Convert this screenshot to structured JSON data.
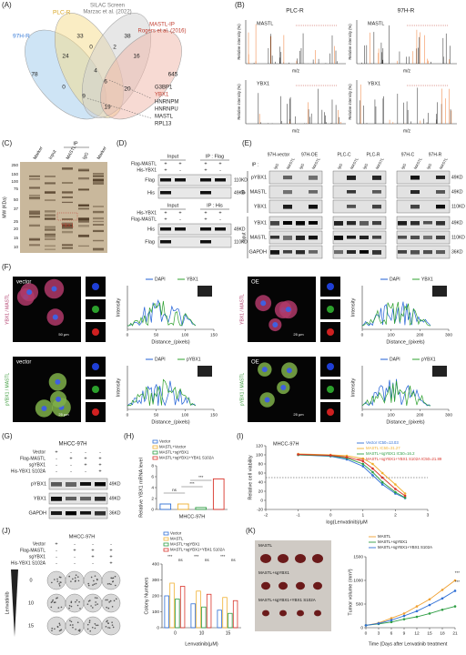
{
  "A": {
    "label": "(A)",
    "sets": [
      "97H-R",
      "PLC-R",
      "SILAC Screen",
      "Marzac et al. (2022)",
      "MASTL-IP",
      "Rogers et al. (2016)"
    ],
    "counts": [
      78,
      33,
      38,
      645,
      24,
      0,
      2,
      16,
      4,
      6,
      20,
      0,
      9,
      19
    ],
    "genes": [
      "G3BP1",
      "YBX1",
      "HNRNPM",
      "HNRNPU",
      "MASTL",
      "RPL13"
    ]
  },
  "B": {
    "label": "(B)",
    "titles": [
      "PLC-R",
      "97H-R"
    ],
    "proteins": [
      "MASTL",
      "YBX1"
    ],
    "ylabel": "Relative intensity (%)",
    "xlabel": "m/z"
  },
  "C": {
    "label": "(C)",
    "lanes": [
      "Marker",
      "Input",
      "MASTL",
      "IgG",
      "Marker"
    ],
    "ip": "IP",
    "ylabel": "MW (KDa)",
    "mw": [
      250,
      150,
      100,
      75,
      50,
      37,
      25,
      20,
      15,
      10
    ],
    "band": "YBX1"
  },
  "D": {
    "label": "(D)",
    "top": {
      "headers": [
        "Input",
        "IP : Flag"
      ],
      "rows": [
        "Flag-MASTL",
        "His-YBX1"
      ],
      "signs": [
        [
          "+",
          "+",
          "+",
          "+"
        ],
        [
          "+",
          "-",
          "+",
          "-"
        ]
      ],
      "blots": [
        "Flag",
        "His"
      ],
      "sizes": [
        "110KD",
        "49KD"
      ]
    },
    "bottom": {
      "headers": [
        "Input",
        "IP : His"
      ],
      "rows": [
        "His-YBX1",
        "Flag-MASTL"
      ],
      "signs": [
        [
          "+",
          "+",
          "+",
          "+"
        ],
        [
          "+",
          "-",
          "+",
          "-"
        ]
      ],
      "blots": [
        "His",
        "Flag"
      ],
      "sizes": [
        "49KD",
        "110KD"
      ]
    }
  },
  "E": {
    "label": "(E)",
    "groups": [
      "97H-vector",
      "97H-OE",
      "PLC-C",
      "PLC-R",
      "97H-C",
      "97H-R"
    ],
    "lanes": [
      "IgG",
      "MASTL"
    ],
    "ip_prefix": "IP :",
    "sections": [
      "IP",
      "Input"
    ],
    "rows": [
      "pYBX1",
      "MASTL",
      "YBX1",
      "YBX1",
      "MASTL",
      "GAPDH"
    ],
    "sizes": [
      "49KD",
      "49KD",
      "110KD",
      "49KD",
      "110KD",
      "36KD"
    ]
  },
  "F": {
    "label": "(F)",
    "conditions": [
      "vector",
      "OE"
    ],
    "stains": [
      "YBX1 / MASTL",
      "pYBX1 / MASTL"
    ],
    "legend": [
      "DAPI",
      "YBX1",
      "pYBX1"
    ],
    "ylabel": "Intensity",
    "xlabel": "Distance_(pixels)",
    "xticks_vector": [
      0,
      50,
      100,
      150
    ],
    "xticks_oe": [
      0,
      100,
      200,
      300
    ],
    "scales": [
      "50 μm",
      "25 μm",
      "25 μm",
      "25 μm"
    ]
  },
  "G": {
    "label": "(G)",
    "title": "MHCC-97H",
    "rows": [
      "Vector",
      "Flag-MASTL",
      "sgYBX1",
      "His-YBX1 S102A"
    ],
    "signs": [
      [
        "+",
        "-",
        "-",
        "-"
      ],
      [
        "-",
        "+",
        "+",
        "+"
      ],
      [
        "-",
        "-",
        "+",
        "+"
      ],
      [
        "-",
        "-",
        "-",
        "+"
      ]
    ],
    "blots": [
      "pYBX1",
      "YBX1",
      "GAPDH"
    ],
    "sizes": [
      "49KD",
      "49KD",
      "36KD"
    ]
  },
  "H": {
    "label": "(H)",
    "type": "bar",
    "legend": [
      "Vector",
      "MASTL+Vector",
      "MASTL+sgYBX1",
      "MASTL+sgYBX1+YBX1 S102A"
    ],
    "colors": [
      "#2f6fd6",
      "#f0b030",
      "#2e9e44",
      "#d9342b"
    ],
    "values": [
      1,
      1,
      0.35,
      5.6
    ],
    "ylim": [
      0,
      8
    ],
    "yticks": [
      0,
      2,
      4,
      6,
      8
    ],
    "ylabel": "Relative YBX1 mRNA level",
    "xlabel": "MHCC-97H",
    "sig": [
      "ns",
      "***",
      "***"
    ]
  },
  "I": {
    "label": "(I)",
    "type": "line",
    "title": "MHCC-97H",
    "x": [
      -1,
      0,
      0.5,
      1,
      1.3,
      1.6,
      2,
      2.3
    ],
    "series": [
      {
        "name": "Vector IC50=13.03",
        "color": "#2f6fd6",
        "values": [
          100,
          97,
          90,
          75,
          55,
          35,
          15,
          5
        ]
      },
      {
        "name": "MASTL IC50=31.27",
        "color": "#f0b030",
        "values": [
          102,
          100,
          98,
          92,
          80,
          60,
          35,
          15
        ]
      },
      {
        "name": "MASTL+sgYBX1 IC50=16.2",
        "color": "#2e9e44",
        "values": [
          100,
          98,
          93,
          80,
          62,
          40,
          18,
          6
        ]
      },
      {
        "name": "MASTL+sgYBX1+YBX1 S102A IC50=21.89",
        "color": "#d9342b",
        "values": [
          101,
          99,
          95,
          86,
          70,
          50,
          25,
          10
        ]
      }
    ],
    "xlim": [
      -2,
      3
    ],
    "xticks": [
      -2,
      -1,
      0,
      1,
      2,
      3
    ],
    "ylim": [
      -20,
      120
    ],
    "yticks": [
      -20,
      0,
      20,
      40,
      60,
      80,
      100,
      120
    ],
    "threshold": 50,
    "xlabel": "log(Lenvatinib)/μM",
    "ylabel": "Relative cell viability"
  },
  "J": {
    "label": "(J)",
    "title": "MHCC-97H",
    "rows": [
      "Vector",
      "Flag-MASTL",
      "sgYBX1",
      "His-YBX1 S102A"
    ],
    "signs": [
      [
        "+",
        "-",
        "-",
        "-"
      ],
      [
        "-",
        "+",
        "+",
        "+"
      ],
      [
        "-",
        "-",
        "+",
        "+"
      ],
      [
        "-",
        "-",
        "-",
        "+"
      ]
    ],
    "drug": "Lenvatinib",
    "doses": [
      "0",
      "10",
      "15"
    ],
    "chart": {
      "type": "bar",
      "categories": [
        "0",
        "10",
        "15"
      ],
      "series": [
        {
          "name": "Vector",
          "color": "#2f6fd6",
          "values": [
            200,
            150,
            110
          ]
        },
        {
          "name": "MASTL",
          "color": "#f0b030",
          "values": [
            280,
            230,
            190
          ]
        },
        {
          "name": "MASTL+sgYBX1",
          "color": "#2e9e44",
          "values": [
            180,
            130,
            90
          ]
        },
        {
          "name": "MASTL+sgYBX1+YBX1 S102A",
          "color": "#d9342b",
          "values": [
            260,
            210,
            170
          ]
        }
      ],
      "ylim": [
        0,
        400
      ],
      "yticks": [
        0,
        100,
        200,
        300,
        400
      ],
      "ylabel": "Colony Numbers",
      "xlabel": "Lenvatinib(μM)",
      "sig": [
        "***",
        "ns"
      ]
    }
  },
  "K": {
    "label": "(K)",
    "photo_labels": [
      "MASTL",
      "MASTL+sgYBX1",
      "MASTL+sgYBX1+YBX1 S102A"
    ],
    "chart": {
      "type": "line",
      "x": [
        0,
        3,
        6,
        9,
        12,
        15,
        18,
        21
      ],
      "series": [
        {
          "name": "MASTL",
          "color": "#f0a030",
          "values": [
            50,
            100,
            200,
            300,
            450,
            600,
            800,
            1000
          ]
        },
        {
          "name": "MASTL+sgYBX1",
          "color": "#2e9e44",
          "values": [
            50,
            80,
            120,
            180,
            230,
            300,
            380,
            450
          ]
        },
        {
          "name": "MASTL+sgYBX1+YBX1 S102A",
          "color": "#2f6fd6",
          "values": [
            50,
            90,
            160,
            250,
            350,
            480,
            620,
            780
          ]
        }
      ],
      "xlim": [
        0,
        21
      ],
      "xticks": [
        0,
        3,
        6,
        9,
        12,
        15,
        18,
        21
      ],
      "ylim": [
        0,
        1500
      ],
      "yticks": [
        0,
        500,
        1000,
        1500
      ],
      "ylabel": "Tumor volume (mm³)",
      "xlabel": "Time (Days after Lenvatinib treatment",
      "sig": "***"
    }
  }
}
